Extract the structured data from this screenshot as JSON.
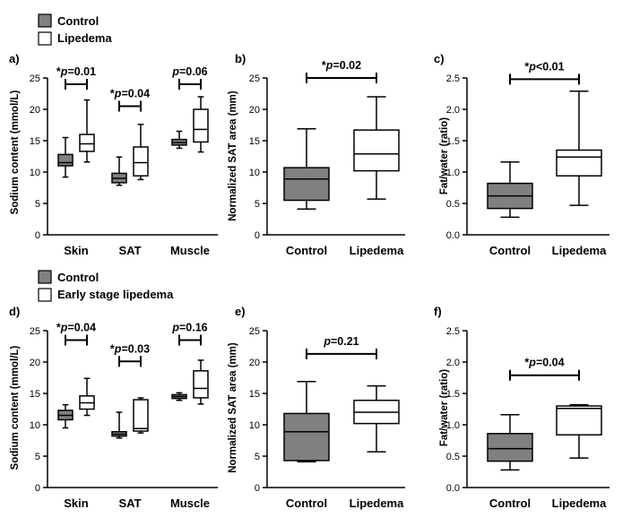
{
  "colors": {
    "control": "#808080",
    "lipedema": "#ffffff",
    "stroke": "#000000"
  },
  "legends": [
    {
      "entries": [
        {
          "label": "Control",
          "color": "#808080"
        },
        {
          "label": "Lipedema",
          "color": "#ffffff"
        }
      ]
    },
    {
      "entries": [
        {
          "label": "Control",
          "color": "#808080"
        },
        {
          "label": "Early stage lipedema",
          "color": "#ffffff"
        }
      ]
    }
  ],
  "chart_data": [
    {
      "id": "a",
      "panel_label": "a)",
      "type": "box",
      "ylabel": "Sodium content (mmol/L)",
      "ylim": [
        0,
        25
      ],
      "yticks": [
        0,
        5,
        10,
        15,
        20,
        25
      ],
      "categories": [
        "Skin",
        "SAT",
        "Muscle"
      ],
      "series": [
        {
          "name": "Control",
          "boxes": [
            {
              "min": 9.2,
              "q1": 11.0,
              "median": 11.5,
              "q3": 12.8,
              "max": 15.5
            },
            {
              "min": 7.9,
              "q1": 8.3,
              "median": 9.0,
              "q3": 9.8,
              "max": 12.4
            },
            {
              "min": 13.8,
              "q1": 14.3,
              "median": 14.7,
              "q3": 15.2,
              "max": 16.5
            }
          ]
        },
        {
          "name": "Lipedema",
          "boxes": [
            {
              "min": 11.6,
              "q1": 13.3,
              "median": 14.5,
              "q3": 16.0,
              "max": 21.5
            },
            {
              "min": 8.8,
              "q1": 9.4,
              "median": 11.5,
              "q3": 14.0,
              "max": 17.6
            },
            {
              "min": 13.2,
              "q1": 14.8,
              "median": 16.8,
              "q3": 20.0,
              "max": 22.0
            }
          ]
        }
      ],
      "annotations": [
        {
          "category": 0,
          "y": 24.0,
          "star": "*",
          "p": "p",
          "rest": "=0.01"
        },
        {
          "category": 1,
          "y": 20.5,
          "star": "*",
          "p": "p",
          "rest": "=0.04"
        },
        {
          "category": 2,
          "y": 24.0,
          "star": "",
          "p": "p",
          "rest": "=0.06"
        }
      ]
    },
    {
      "id": "b",
      "panel_label": "b)",
      "type": "box",
      "ylabel": "Normalized SAT area (mm)",
      "ylim": [
        0,
        25
      ],
      "yticks": [
        0,
        5,
        10,
        15,
        20,
        25
      ],
      "categories": [
        "Control",
        "Lipedema"
      ],
      "boxes": [
        {
          "series": "Control",
          "min": 4.1,
          "q1": 5.5,
          "median": 8.9,
          "q3": 10.7,
          "max": 16.9
        },
        {
          "series": "Lipedema",
          "min": 5.7,
          "q1": 10.2,
          "median": 12.9,
          "q3": 16.7,
          "max": 22.0
        }
      ],
      "annotations": [
        {
          "from": 0,
          "to": 1,
          "y": 25.0,
          "star": "*",
          "p": "p",
          "rest": "=0.02"
        }
      ]
    },
    {
      "id": "c",
      "panel_label": "c)",
      "type": "box",
      "ylabel": "Fat/water (ratio)",
      "ylim": [
        0,
        2.5
      ],
      "yticks": [
        "0.0",
        "0.5",
        "1.0",
        "1.5",
        "2.0",
        "2.5"
      ],
      "categories": [
        "Control",
        "Lipedema"
      ],
      "boxes": [
        {
          "series": "Control",
          "min": 0.28,
          "q1": 0.42,
          "median": 0.62,
          "q3": 0.82,
          "max": 1.16
        },
        {
          "series": "Lipedema",
          "min": 0.47,
          "q1": 0.94,
          "median": 1.24,
          "q3": 1.35,
          "max": 2.29
        }
      ],
      "annotations": [
        {
          "from": 0,
          "to": 1,
          "y": 2.48,
          "star": "*",
          "p": "p",
          "rest": "<0.01"
        }
      ]
    },
    {
      "id": "d",
      "panel_label": "d)",
      "type": "box",
      "ylabel": "Sodium content (mmol/L)",
      "ylim": [
        0,
        25
      ],
      "yticks": [
        0,
        5,
        10,
        15,
        20,
        25
      ],
      "categories": [
        "Skin",
        "SAT",
        "Muscle"
      ],
      "series": [
        {
          "name": "Control",
          "boxes": [
            {
              "min": 9.5,
              "q1": 10.8,
              "median": 11.5,
              "q3": 12.3,
              "max": 13.2
            },
            {
              "min": 7.9,
              "q1": 8.2,
              "median": 8.5,
              "q3": 8.9,
              "max": 12.0
            },
            {
              "min": 13.9,
              "q1": 14.2,
              "median": 14.5,
              "q3": 14.8,
              "max": 15.1
            }
          ]
        },
        {
          "name": "Early stage lipedema",
          "boxes": [
            {
              "min": 11.5,
              "q1": 12.5,
              "median": 13.5,
              "q3": 14.6,
              "max": 17.4
            },
            {
              "min": 8.7,
              "q1": 9.0,
              "median": 9.4,
              "q3": 14.0,
              "max": 14.3
            },
            {
              "min": 13.3,
              "q1": 14.3,
              "median": 15.8,
              "q3": 18.6,
              "max": 20.3
            }
          ]
        }
      ],
      "annotations": [
        {
          "category": 0,
          "y": 23.5,
          "star": "*",
          "p": "p",
          "rest": "=0.04"
        },
        {
          "category": 1,
          "y": 20.1,
          "star": "*",
          "p": "p",
          "rest": "=0.03"
        },
        {
          "category": 2,
          "y": 23.5,
          "star": "",
          "p": "p",
          "rest": "=0.16"
        }
      ]
    },
    {
      "id": "e",
      "panel_label": "e)",
      "type": "box",
      "ylabel": "Normalized SAT area (mm)",
      "ylim": [
        0,
        25
      ],
      "yticks": [
        0,
        5,
        10,
        15,
        20,
        25
      ],
      "categories": [
        "Control",
        "Lipedema"
      ],
      "boxes": [
        {
          "series": "Control",
          "min": 4.1,
          "q1": 4.3,
          "median": 8.9,
          "q3": 11.8,
          "max": 16.9
        },
        {
          "series": "Lipedema",
          "min": 5.7,
          "q1": 10.2,
          "median": 12.0,
          "q3": 13.9,
          "max": 16.2
        }
      ],
      "annotations": [
        {
          "from": 0,
          "to": 1,
          "y": 21.3,
          "star": "",
          "p": "p",
          "rest": "=0.21"
        }
      ]
    },
    {
      "id": "f",
      "panel_label": "f)",
      "type": "box",
      "ylabel": "Fat/water (ratio)",
      "ylim": [
        0,
        2.5
      ],
      "yticks": [
        "0.0",
        "0.5",
        "1.0",
        "1.5",
        "2.0",
        "2.5"
      ],
      "categories": [
        "Control",
        "Lipedema"
      ],
      "boxes": [
        {
          "series": "Control",
          "min": 0.28,
          "q1": 0.42,
          "median": 0.62,
          "q3": 0.86,
          "max": 1.16
        },
        {
          "series": "Lipedema",
          "min": 0.47,
          "q1": 0.84,
          "median": 1.26,
          "q3": 1.3,
          "max": 1.32
        }
      ],
      "annotations": [
        {
          "from": 0,
          "to": 1,
          "y": 1.79,
          "star": "*",
          "p": "p",
          "rest": "=0.04"
        }
      ]
    }
  ]
}
